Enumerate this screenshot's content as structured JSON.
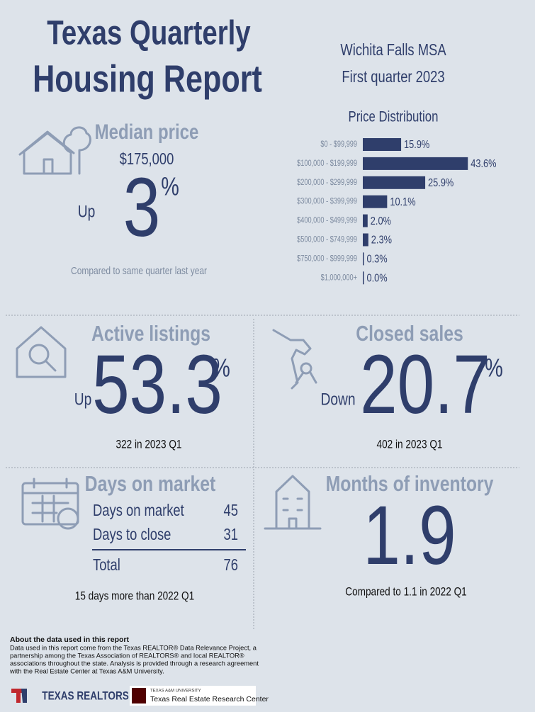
{
  "header": {
    "title_line1": "Texas Quarterly",
    "title_line2": "Housing Report",
    "region": "Wichita Falls MSA",
    "period": "First quarter 2023"
  },
  "median_price": {
    "heading": "Median price",
    "price": "$175,000",
    "direction": "Up",
    "change": "3",
    "unit": "%",
    "note": "Compared to same quarter last year"
  },
  "chart_data": {
    "type": "bar",
    "orientation": "horizontal",
    "title": "Price Distribution",
    "categories": [
      "$0 - $99,999",
      "$100,000 - $199,999",
      "$200,000 - $299,999",
      "$300,000 - $399,999",
      "$400,000 - $499,999",
      "$500,000 - $749,999",
      "$750,000 - $999,999",
      "$1,000,000+"
    ],
    "values": [
      15.9,
      43.6,
      25.9,
      10.1,
      2.0,
      2.3,
      0.3,
      0.0
    ],
    "value_labels": [
      "15.9%",
      "43.6%",
      "25.9%",
      "10.1%",
      "2.0%",
      "2.3%",
      "0.3%",
      "0.0%"
    ],
    "color": "#2f3e6b"
  },
  "active_listings": {
    "heading": "Active listings",
    "direction": "Up",
    "change": "53.3",
    "unit": "%",
    "note": "322 in 2023 Q1"
  },
  "closed_sales": {
    "heading": "Closed sales",
    "direction": "Down",
    "change": "20.7",
    "unit": "%",
    "note": "402 in 2023 Q1"
  },
  "days_on_market": {
    "heading": "Days on market",
    "rows": [
      [
        "Days on market",
        "45"
      ],
      [
        "Days to close",
        "31"
      ],
      [
        "Total",
        "76"
      ]
    ],
    "note": "15 days more than 2022 Q1"
  },
  "months_of_inventory": {
    "heading": "Months of inventory",
    "value": "1.9",
    "note": "Compared to 1.1 in 2022 Q1"
  },
  "footer": {
    "about_title": "About the data used in this report",
    "about_lines": [
      "Data used in this report come from the Texas REALTOR® Data Relevance Project, a",
      "partnership among the Texas Association of REALTORS® and local REALTOR®",
      "associations throughout the state. Analysis is provided through a research agreement",
      "with the Real Estate Center at Texas A&M University."
    ],
    "logo_left": "TEXAS REALTORS",
    "logo_right_small": "TEXAS A&M UNIVERSITY",
    "logo_right": "Texas Real Estate Research Center"
  }
}
